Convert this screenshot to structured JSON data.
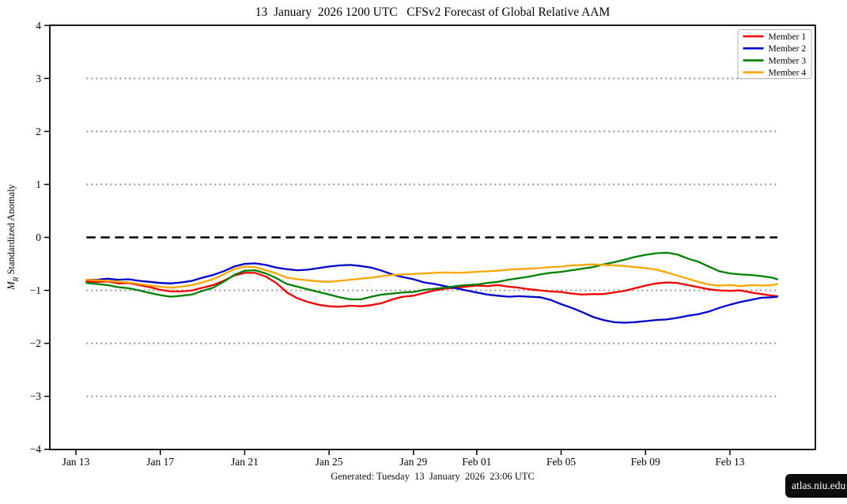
{
  "figure": {
    "title": "13  January  2026 1200 UTC   CFSv2 Forecast of Global Relative AAM",
    "caption": "Generated: Tuesday  13  January  2026  23:06 UTC",
    "badge": "atlas.niu.edu"
  },
  "chart_data": {
    "type": "line",
    "title": "13  January  2026 1200 UTC   CFSv2 Forecast of Global Relative AAM",
    "xlabel": "",
    "ylabel_parts": {
      "prefix_italic": "M",
      "subscript": "R",
      "rest": " Standardized Anomaly"
    },
    "ylim": [
      -4,
      4
    ],
    "yticks": [
      4,
      3,
      2,
      1,
      0,
      -1,
      -2,
      -3,
      -4
    ],
    "xlim_days": [
      -1.24,
      35.06
    ],
    "xticks": [
      {
        "day": 0,
        "label": "Jan 13"
      },
      {
        "day": 4,
        "label": "Jan 17"
      },
      {
        "day": 8,
        "label": "Jan 21"
      },
      {
        "day": 12,
        "label": "Jan 25"
      },
      {
        "day": 16,
        "label": "Jan 29"
      },
      {
        "day": 19,
        "label": "Feb 01"
      },
      {
        "day": 23,
        "label": "Feb 05"
      },
      {
        "day": 27,
        "label": "Feb 09"
      },
      {
        "day": 31,
        "label": "Feb 13"
      }
    ],
    "grid": {
      "dotted_levels": [
        3,
        2,
        1,
        -1,
        -2,
        -3
      ],
      "dotted_color": "#8a8a8a",
      "zero_dashed": true,
      "zero_color": "#000000",
      "span_days": [
        0.5,
        33.25
      ]
    },
    "legend": {
      "position": "top-right",
      "entries": [
        {
          "label": "Member 1",
          "color": "#f40000"
        },
        {
          "label": "Member 2",
          "color": "#0000cd"
        },
        {
          "label": "Member 3",
          "color": "#008000"
        },
        {
          "label": "Member 4",
          "color": "#ffa500"
        }
      ]
    },
    "x_days": [
      0.5,
      1,
      1.5,
      2,
      2.5,
      3,
      3.5,
      4,
      4.5,
      5,
      5.5,
      6,
      6.5,
      7,
      7.5,
      8,
      8.5,
      9,
      9.5,
      10,
      10.5,
      11,
      11.5,
      12,
      12.5,
      13,
      13.5,
      14,
      14.5,
      15,
      15.5,
      16,
      16.5,
      17,
      17.5,
      18,
      18.5,
      19,
      19.5,
      20,
      20.5,
      21,
      21.5,
      22,
      22.5,
      23,
      23.5,
      24,
      24.5,
      25,
      25.5,
      26,
      26.5,
      27,
      27.5,
      28,
      28.5,
      29,
      29.5,
      30,
      30.5,
      31,
      31.5,
      32,
      32.5,
      33,
      33.25
    ],
    "series": [
      {
        "name": "Member 1",
        "color": "#f40000",
        "values": [
          -0.83,
          -0.84,
          -0.83,
          -0.87,
          -0.86,
          -0.9,
          -0.94,
          -0.99,
          -1.02,
          -1.02,
          -1.0,
          -0.95,
          -0.9,
          -0.82,
          -0.72,
          -0.67,
          -0.67,
          -0.74,
          -0.86,
          -1.04,
          -1.15,
          -1.22,
          -1.27,
          -1.3,
          -1.31,
          -1.29,
          -1.3,
          -1.28,
          -1.24,
          -1.17,
          -1.12,
          -1.1,
          -1.05,
          -1.0,
          -0.97,
          -0.95,
          -0.93,
          -0.91,
          -0.92,
          -0.9,
          -0.93,
          -0.95,
          -0.98,
          -1.0,
          -1.02,
          -1.03,
          -1.06,
          -1.08,
          -1.07,
          -1.07,
          -1.04,
          -1.01,
          -0.96,
          -0.91,
          -0.87,
          -0.85,
          -0.86,
          -0.9,
          -0.94,
          -0.98,
          -1.0,
          -1.01,
          -1.0,
          -1.04,
          -1.07,
          -1.1,
          -1.11
        ]
      },
      {
        "name": "Member 2",
        "color": "#0000cd",
        "values": [
          -0.8,
          -0.8,
          -0.78,
          -0.8,
          -0.79,
          -0.82,
          -0.84,
          -0.86,
          -0.87,
          -0.85,
          -0.82,
          -0.76,
          -0.71,
          -0.64,
          -0.55,
          -0.5,
          -0.49,
          -0.52,
          -0.57,
          -0.6,
          -0.62,
          -0.61,
          -0.58,
          -0.55,
          -0.53,
          -0.52,
          -0.54,
          -0.57,
          -0.63,
          -0.7,
          -0.75,
          -0.79,
          -0.85,
          -0.88,
          -0.92,
          -0.96,
          -1.0,
          -1.04,
          -1.08,
          -1.1,
          -1.12,
          -1.11,
          -1.12,
          -1.13,
          -1.18,
          -1.26,
          -1.33,
          -1.41,
          -1.5,
          -1.56,
          -1.6,
          -1.61,
          -1.6,
          -1.58,
          -1.56,
          -1.55,
          -1.52,
          -1.48,
          -1.45,
          -1.4,
          -1.33,
          -1.27,
          -1.22,
          -1.18,
          -1.14,
          -1.13,
          -1.12
        ]
      },
      {
        "name": "Member 3",
        "color": "#008000",
        "values": [
          -0.86,
          -0.88,
          -0.9,
          -0.94,
          -0.96,
          -1.0,
          -1.05,
          -1.09,
          -1.12,
          -1.1,
          -1.08,
          -1.01,
          -0.95,
          -0.84,
          -0.71,
          -0.63,
          -0.62,
          -0.68,
          -0.77,
          -0.88,
          -0.93,
          -0.98,
          -1.03,
          -1.08,
          -1.13,
          -1.17,
          -1.17,
          -1.12,
          -1.08,
          -1.06,
          -1.04,
          -1.03,
          -0.99,
          -0.97,
          -0.95,
          -0.92,
          -0.9,
          -0.89,
          -0.86,
          -0.84,
          -0.8,
          -0.77,
          -0.74,
          -0.7,
          -0.67,
          -0.65,
          -0.62,
          -0.59,
          -0.56,
          -0.51,
          -0.47,
          -0.42,
          -0.37,
          -0.33,
          -0.3,
          -0.29,
          -0.32,
          -0.4,
          -0.46,
          -0.55,
          -0.64,
          -0.68,
          -0.7,
          -0.71,
          -0.73,
          -0.76,
          -0.79
        ]
      },
      {
        "name": "Member 4",
        "color": "#ffa500",
        "values": [
          -0.8,
          -0.81,
          -0.82,
          -0.84,
          -0.85,
          -0.88,
          -0.91,
          -0.93,
          -0.95,
          -0.93,
          -0.9,
          -0.85,
          -0.79,
          -0.7,
          -0.6,
          -0.55,
          -0.56,
          -0.62,
          -0.68,
          -0.76,
          -0.79,
          -0.81,
          -0.83,
          -0.84,
          -0.82,
          -0.8,
          -0.78,
          -0.76,
          -0.73,
          -0.71,
          -0.7,
          -0.69,
          -0.68,
          -0.67,
          -0.66,
          -0.67,
          -0.66,
          -0.65,
          -0.64,
          -0.63,
          -0.61,
          -0.6,
          -0.59,
          -0.58,
          -0.56,
          -0.55,
          -0.53,
          -0.52,
          -0.51,
          -0.52,
          -0.53,
          -0.54,
          -0.56,
          -0.58,
          -0.61,
          -0.66,
          -0.72,
          -0.78,
          -0.84,
          -0.89,
          -0.91,
          -0.9,
          -0.92,
          -0.9,
          -0.91,
          -0.9,
          -0.88
        ]
      }
    ]
  }
}
